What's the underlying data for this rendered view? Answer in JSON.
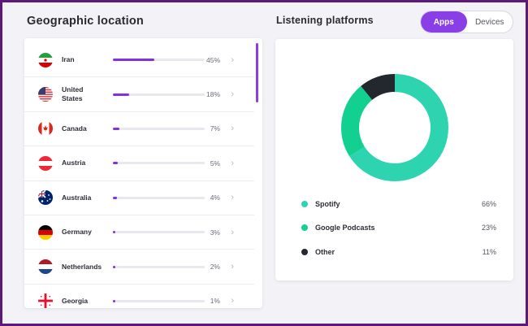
{
  "geographic": {
    "title": "Geographic location",
    "countries": [
      {
        "name": "Iran",
        "percent_label": "45%",
        "share": 0.45,
        "flag": "flag-iran-icon"
      },
      {
        "name": "United States",
        "percent_label": "18%",
        "share": 0.18,
        "flag": "flag-united-states-icon"
      },
      {
        "name": "Canada",
        "percent_label": "7%",
        "share": 0.07,
        "flag": "flag-canada-icon"
      },
      {
        "name": "Austria",
        "percent_label": "5%",
        "share": 0.05,
        "flag": "flag-austria-icon"
      },
      {
        "name": "Australia",
        "percent_label": "4%",
        "share": 0.04,
        "flag": "flag-australia-icon"
      },
      {
        "name": "Germany",
        "percent_label": "3%",
        "share": 0.03,
        "flag": "flag-germany-icon"
      },
      {
        "name": "Netherlands",
        "percent_label": "2%",
        "share": 0.02,
        "flag": "flag-netherlands-icon"
      },
      {
        "name": "Georgia",
        "percent_label": "1%",
        "share": 0.01,
        "flag": "flag-georgia-icon"
      }
    ],
    "chevron": "›"
  },
  "platforms": {
    "title": "Listening platforms",
    "toggle": {
      "apps": "Apps",
      "devices": "Devices",
      "selected": "apps"
    },
    "segments": [
      {
        "name": "Spotify",
        "value_label": "66%",
        "share": 0.66,
        "color": "#2ed3b0"
      },
      {
        "name": "Google Podcasts",
        "value_label": "23%",
        "share": 0.23,
        "color": "#11d090"
      },
      {
        "name": "Other",
        "value_label": "11%",
        "share": 0.11,
        "color": "#23282e"
      }
    ]
  },
  "colors": {
    "accent": "#8a3fe6",
    "bar": "#8131e5",
    "frame": "#5b1a7a"
  }
}
